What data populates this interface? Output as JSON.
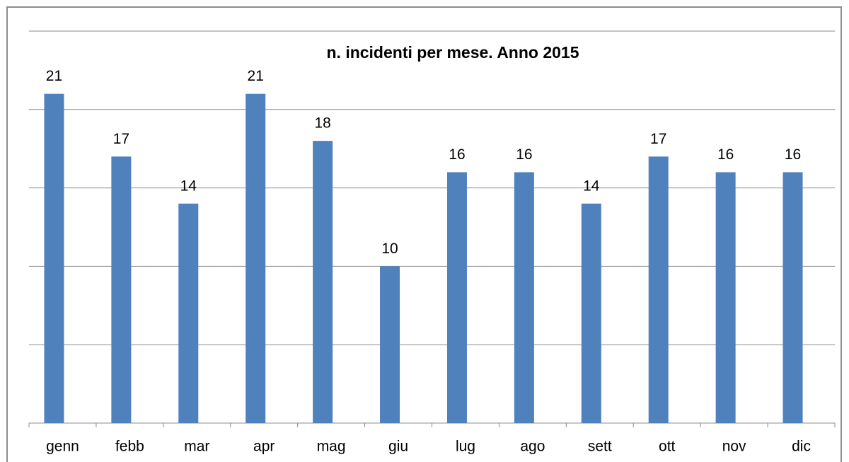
{
  "chart_data": {
    "type": "bar",
    "title": "n. incidenti per mese. Anno 2015",
    "categories": [
      "genn",
      "febb",
      "mar",
      "apr",
      "mag",
      "giu",
      "lug",
      "ago",
      "sett",
      "ott",
      "nov",
      "dic"
    ],
    "values": [
      21,
      17,
      14,
      21,
      18,
      10,
      16,
      16,
      14,
      17,
      16,
      16
    ],
    "color": "#4f81bd",
    "ylim": [
      0,
      25
    ],
    "yticks": [
      0,
      5,
      10,
      15,
      20,
      25
    ],
    "grid": true
  }
}
